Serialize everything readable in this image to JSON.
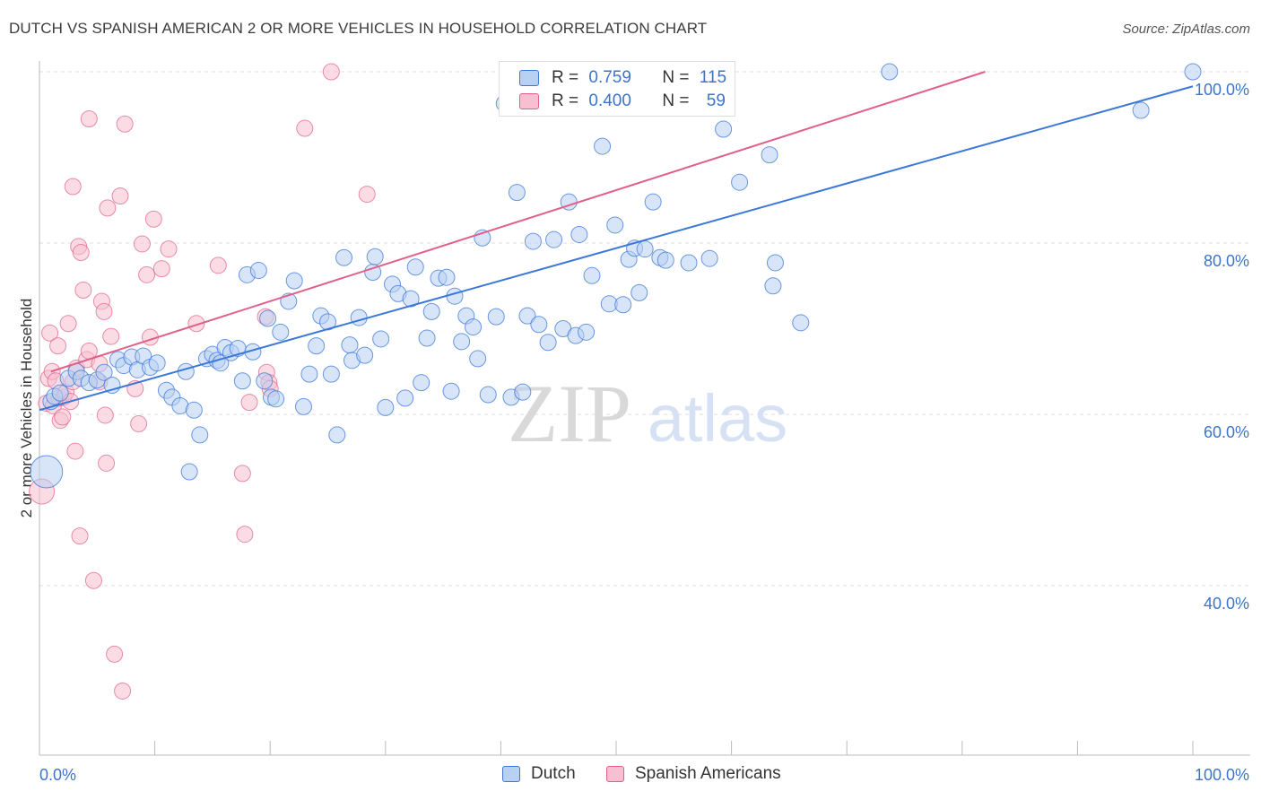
{
  "header": {
    "title": "DUTCH VS SPANISH AMERICAN 2 OR MORE VEHICLES IN HOUSEHOLD CORRELATION CHART",
    "source": "Source: ZipAtlas.com"
  },
  "colors": {
    "blue": "#3b78d8",
    "blue_fill": "#b8d0f2",
    "pink": "#e0608a",
    "pink_fill": "#f7bfd0",
    "axis_label": "#3d74c9",
    "grid": "#dddddd"
  },
  "legend": {
    "dutch": {
      "r_label": "R =",
      "r_value": "0.759",
      "n_label": "N =",
      "n_value": "115"
    },
    "spanish": {
      "r_label": "R =",
      "r_value": "0.400",
      "n_label": "N =",
      "n_value": "59"
    }
  },
  "watermark": {
    "zip": "ZIP",
    "atlas": "atlas"
  },
  "chart_data": {
    "type": "scatter",
    "title": "DUTCH VS SPANISH AMERICAN 2 OR MORE VEHICLES IN HOUSEHOLD CORRELATION CHART",
    "xlabel": "",
    "ylabel": "2 or more Vehicles in Household",
    "xlim": [
      0,
      100
    ],
    "ylim": [
      21,
      101
    ],
    "x_tick_labels": [
      "0.0%",
      "100.0%"
    ],
    "y_ticks": [
      40,
      60,
      80,
      100
    ],
    "y_tick_labels": [
      "40.0%",
      "60.0%",
      "80.0%",
      "100.0%"
    ],
    "grid": true,
    "legend_position": "top-center",
    "series": [
      {
        "name": "Dutch",
        "color": "#3b78d8",
        "r": 0.759,
        "n": 115,
        "trend": [
          [
            0,
            60.5
          ],
          [
            100,
            98.3
          ]
        ],
        "points": [
          [
            0.6,
            53.3
          ],
          [
            1.0,
            61.5
          ],
          [
            1.3,
            62.1
          ],
          [
            1.8,
            62.5
          ],
          [
            2.5,
            64.2
          ],
          [
            3.2,
            65.0
          ],
          [
            3.6,
            64.2
          ],
          [
            4.3,
            63.7
          ],
          [
            5.0,
            64.0
          ],
          [
            5.6,
            64.9
          ],
          [
            6.3,
            63.4
          ],
          [
            6.8,
            66.4
          ],
          [
            7.3,
            65.7
          ],
          [
            8.0,
            66.7
          ],
          [
            8.5,
            65.2
          ],
          [
            9.0,
            66.8
          ],
          [
            9.6,
            65.5
          ],
          [
            10.2,
            66.0
          ],
          [
            11.0,
            62.8
          ],
          [
            11.5,
            62.0
          ],
          [
            12.2,
            61.0
          ],
          [
            12.7,
            65.0
          ],
          [
            13.0,
            53.3
          ],
          [
            13.4,
            60.5
          ],
          [
            13.9,
            57.6
          ],
          [
            14.5,
            66.5
          ],
          [
            15.0,
            67.0
          ],
          [
            15.4,
            66.3
          ],
          [
            15.7,
            66.0
          ],
          [
            16.1,
            67.8
          ],
          [
            16.6,
            67.2
          ],
          [
            17.2,
            67.7
          ],
          [
            17.6,
            63.9
          ],
          [
            18.0,
            76.3
          ],
          [
            18.5,
            67.3
          ],
          [
            19.0,
            76.8
          ],
          [
            19.5,
            63.9
          ],
          [
            19.8,
            71.2
          ],
          [
            20.1,
            62.0
          ],
          [
            20.5,
            61.8
          ],
          [
            20.9,
            69.6
          ],
          [
            21.6,
            73.2
          ],
          [
            22.1,
            75.6
          ],
          [
            22.9,
            60.9
          ],
          [
            23.4,
            64.7
          ],
          [
            24.0,
            68.0
          ],
          [
            24.4,
            71.5
          ],
          [
            25.0,
            70.8
          ],
          [
            25.3,
            64.7
          ],
          [
            25.8,
            57.6
          ],
          [
            26.4,
            78.3
          ],
          [
            26.9,
            68.1
          ],
          [
            27.1,
            66.3
          ],
          [
            27.7,
            71.3
          ],
          [
            28.2,
            66.9
          ],
          [
            28.9,
            76.6
          ],
          [
            29.1,
            78.4
          ],
          [
            29.6,
            68.8
          ],
          [
            30.0,
            60.8
          ],
          [
            30.6,
            75.2
          ],
          [
            31.1,
            74.1
          ],
          [
            31.7,
            61.9
          ],
          [
            32.2,
            73.5
          ],
          [
            32.6,
            77.2
          ],
          [
            33.1,
            63.7
          ],
          [
            33.6,
            68.9
          ],
          [
            34.0,
            72.0
          ],
          [
            34.6,
            75.9
          ],
          [
            35.3,
            76.0
          ],
          [
            35.7,
            62.7
          ],
          [
            36.0,
            73.8
          ],
          [
            36.6,
            68.5
          ],
          [
            37.0,
            71.5
          ],
          [
            37.6,
            70.2
          ],
          [
            38.0,
            66.5
          ],
          [
            38.4,
            80.6
          ],
          [
            38.9,
            62.3
          ],
          [
            39.6,
            71.4
          ],
          [
            40.3,
            96.3
          ],
          [
            40.9,
            62.0
          ],
          [
            41.4,
            85.9
          ],
          [
            41.9,
            62.6
          ],
          [
            42.3,
            71.5
          ],
          [
            42.8,
            80.2
          ],
          [
            43.3,
            70.5
          ],
          [
            44.1,
            68.4
          ],
          [
            44.6,
            80.4
          ],
          [
            45.4,
            70.0
          ],
          [
            45.9,
            84.8
          ],
          [
            46.5,
            69.2
          ],
          [
            46.8,
            81.0
          ],
          [
            47.4,
            69.6
          ],
          [
            47.9,
            76.2
          ],
          [
            48.8,
            91.3
          ],
          [
            49.4,
            72.9
          ],
          [
            49.9,
            82.1
          ],
          [
            50.6,
            72.8
          ],
          [
            51.1,
            78.1
          ],
          [
            51.6,
            79.4
          ],
          [
            52.0,
            74.2
          ],
          [
            52.5,
            79.3
          ],
          [
            53.2,
            84.8
          ],
          [
            53.8,
            78.3
          ],
          [
            54.3,
            78.0
          ],
          [
            56.3,
            77.7
          ],
          [
            56.8,
            100.0
          ],
          [
            58.1,
            78.2
          ],
          [
            59.3,
            93.3
          ],
          [
            60.7,
            87.1
          ],
          [
            63.3,
            90.3
          ],
          [
            63.8,
            77.7
          ],
          [
            63.6,
            75.0
          ],
          [
            66.0,
            70.7
          ],
          [
            73.7,
            100.0
          ],
          [
            95.5,
            95.5
          ],
          [
            100.0,
            100.0
          ]
        ]
      },
      {
        "name": "Spanish Americans",
        "color": "#e0608a",
        "r": 0.4,
        "n": 59,
        "trend": [
          [
            1.0,
            65.0
          ],
          [
            82.0,
            100.0
          ]
        ],
        "points": [
          [
            0.2,
            51.0
          ],
          [
            0.6,
            61.3
          ],
          [
            0.8,
            64.2
          ],
          [
            0.9,
            69.5
          ],
          [
            1.1,
            65.0
          ],
          [
            1.2,
            61.0
          ],
          [
            1.4,
            63.9
          ],
          [
            1.6,
            68.0
          ],
          [
            1.7,
            61.9
          ],
          [
            1.8,
            59.3
          ],
          [
            2.0,
            59.7
          ],
          [
            2.1,
            62.0
          ],
          [
            2.3,
            62.6
          ],
          [
            2.5,
            70.6
          ],
          [
            2.7,
            61.5
          ],
          [
            2.9,
            63.8
          ],
          [
            2.9,
            86.6
          ],
          [
            3.1,
            55.7
          ],
          [
            3.2,
            65.4
          ],
          [
            3.4,
            79.6
          ],
          [
            3.5,
            45.8
          ],
          [
            3.6,
            78.9
          ],
          [
            3.8,
            74.5
          ],
          [
            4.1,
            66.4
          ],
          [
            4.3,
            67.4
          ],
          [
            4.3,
            94.5
          ],
          [
            4.7,
            40.6
          ],
          [
            5.2,
            63.8
          ],
          [
            5.2,
            65.9
          ],
          [
            5.4,
            73.2
          ],
          [
            5.6,
            72.0
          ],
          [
            5.7,
            59.9
          ],
          [
            5.8,
            54.3
          ],
          [
            5.9,
            84.1
          ],
          [
            6.2,
            69.1
          ],
          [
            6.5,
            32.0
          ],
          [
            7.0,
            85.5
          ],
          [
            7.2,
            27.7
          ],
          [
            7.4,
            93.9
          ],
          [
            8.3,
            63.0
          ],
          [
            8.6,
            58.9
          ],
          [
            8.9,
            79.9
          ],
          [
            9.3,
            76.3
          ],
          [
            9.6,
            69.0
          ],
          [
            9.9,
            82.8
          ],
          [
            10.6,
            77.0
          ],
          [
            11.2,
            79.3
          ],
          [
            13.6,
            70.6
          ],
          [
            15.5,
            77.4
          ],
          [
            17.6,
            53.1
          ],
          [
            17.8,
            46.0
          ],
          [
            18.2,
            61.4
          ],
          [
            19.7,
            64.9
          ],
          [
            19.9,
            63.7
          ],
          [
            20.0,
            63.0
          ],
          [
            19.6,
            71.4
          ],
          [
            23.0,
            93.4
          ],
          [
            25.3,
            100.0
          ],
          [
            28.4,
            85.7
          ]
        ]
      }
    ]
  },
  "bottom_legend": {
    "dutch_label": "Dutch",
    "spanish_label": "Spanish Americans"
  }
}
